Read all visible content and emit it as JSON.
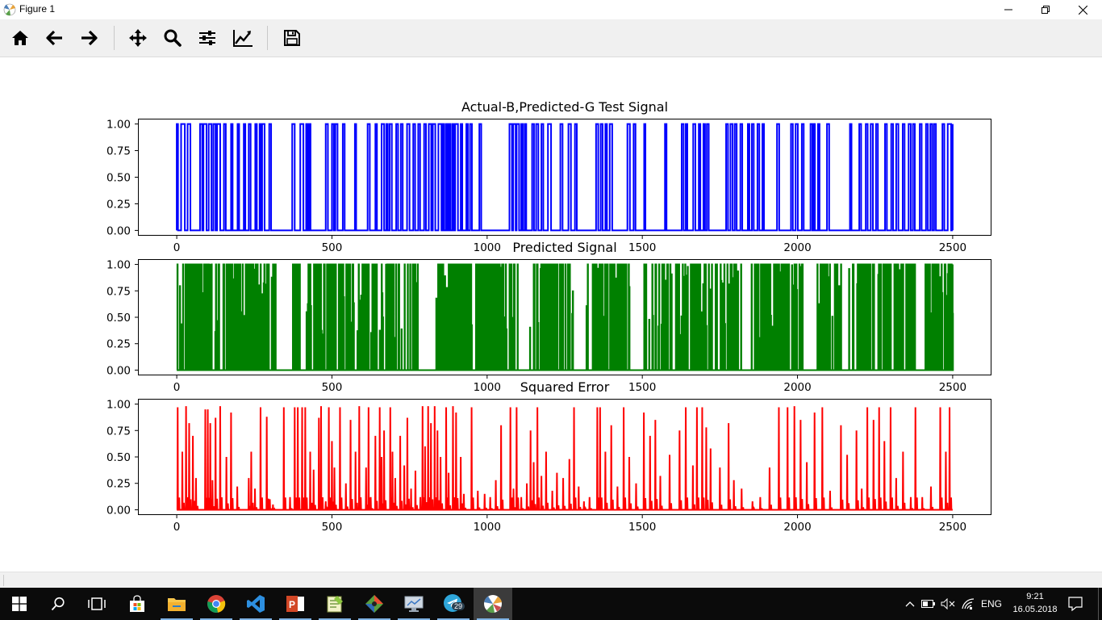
{
  "window": {
    "title": "Figure 1",
    "controls": [
      "minimize",
      "restore",
      "close"
    ]
  },
  "toolbar": {
    "buttons": [
      {
        "name": "home",
        "icon": "home-icon"
      },
      {
        "name": "back",
        "icon": "arrow-left-icon"
      },
      {
        "name": "forward",
        "icon": "arrow-right-icon"
      },
      {
        "name": "pan",
        "icon": "move-icon"
      },
      {
        "name": "zoom",
        "icon": "magnifier-icon"
      },
      {
        "name": "configure-subplots",
        "icon": "sliders-icon"
      },
      {
        "name": "edit-axis",
        "icon": "chart-line-icon"
      },
      {
        "name": "save",
        "icon": "floppy-disk-icon"
      }
    ]
  },
  "chart_data": [
    {
      "type": "line",
      "title": "Actual-B,Predicted-G Test Signal",
      "color": "#0000ff",
      "xlim": [
        -125,
        2625
      ],
      "ylim": [
        -0.05,
        1.05
      ],
      "xticks": [
        0,
        500,
        1000,
        1500,
        2000,
        2500
      ],
      "xtick_labels": [
        "0",
        "500",
        "1000",
        "1500",
        "2000",
        "2500"
      ],
      "yticks": [
        0,
        0.25,
        0.5,
        0.75,
        1
      ],
      "ytick_labels": [
        "0.00",
        "0.25",
        "0.50",
        "0.75",
        "1.00"
      ],
      "x_range": [
        0,
        2500
      ],
      "signal": "binary",
      "pulses": [
        [
          0,
          4
        ],
        [
          14,
          26
        ],
        [
          35,
          44
        ],
        [
          75,
          82
        ],
        [
          86,
          96
        ],
        [
          103,
          112
        ],
        [
          118,
          125
        ],
        [
          130,
          140
        ],
        [
          152,
          158
        ],
        [
          175,
          180
        ],
        [
          196,
          201
        ],
        [
          216,
          221
        ],
        [
          232,
          238
        ],
        [
          253,
          258
        ],
        [
          267,
          272
        ],
        [
          275,
          283
        ],
        [
          298,
          304
        ],
        [
          372,
          380
        ],
        [
          398,
          408
        ],
        [
          417,
          422
        ],
        [
          426,
          431
        ],
        [
          480,
          487
        ],
        [
          500,
          506
        ],
        [
          511,
          518
        ],
        [
          535,
          541
        ],
        [
          574,
          578
        ],
        [
          615,
          622
        ],
        [
          640,
          645
        ],
        [
          660,
          668
        ],
        [
          675,
          680
        ],
        [
          686,
          693
        ],
        [
          707,
          713
        ],
        [
          722,
          728
        ],
        [
          742,
          750
        ],
        [
          762,
          768
        ],
        [
          778,
          784
        ],
        [
          797,
          803
        ],
        [
          812,
          820
        ],
        [
          825,
          833
        ],
        [
          843,
          853
        ],
        [
          858,
          862
        ],
        [
          868,
          873
        ],
        [
          878,
          882
        ],
        [
          888,
          893
        ],
        [
          897,
          906
        ],
        [
          915,
          920
        ],
        [
          933,
          938
        ],
        [
          945,
          951
        ],
        [
          975,
          981
        ],
        [
          1072,
          1080
        ],
        [
          1084,
          1092
        ],
        [
          1095,
          1103
        ],
        [
          1110,
          1115
        ],
        [
          1121,
          1126
        ],
        [
          1145,
          1151
        ],
        [
          1158,
          1165
        ],
        [
          1175,
          1181
        ],
        [
          1196,
          1206
        ],
        [
          1236,
          1243
        ],
        [
          1262,
          1270
        ],
        [
          1283,
          1289
        ],
        [
          1351,
          1358
        ],
        [
          1366,
          1372
        ],
        [
          1381,
          1386
        ],
        [
          1395,
          1403
        ],
        [
          1452,
          1460
        ],
        [
          1472,
          1478
        ],
        [
          1506,
          1510
        ],
        [
          1573,
          1578
        ],
        [
          1627,
          1633
        ],
        [
          1640,
          1645
        ],
        [
          1664,
          1671
        ],
        [
          1682,
          1687
        ],
        [
          1697,
          1702
        ],
        [
          1708,
          1714
        ],
        [
          1770,
          1776
        ],
        [
          1784,
          1791
        ],
        [
          1798,
          1804
        ],
        [
          1816,
          1822
        ],
        [
          1840,
          1845
        ],
        [
          1853,
          1859
        ],
        [
          1871,
          1877
        ],
        [
          1887,
          1892
        ],
        [
          1934,
          1941
        ],
        [
          1979,
          1985
        ],
        [
          1994,
          2001
        ],
        [
          2014,
          2020
        ],
        [
          2042,
          2048
        ],
        [
          2052,
          2056
        ],
        [
          2066,
          2071
        ],
        [
          2095,
          2102
        ],
        [
          2169,
          2174
        ],
        [
          2199,
          2205
        ],
        [
          2220,
          2226
        ],
        [
          2236,
          2243
        ],
        [
          2253,
          2259
        ],
        [
          2282,
          2288
        ],
        [
          2302,
          2308
        ],
        [
          2318,
          2325
        ],
        [
          2339,
          2345
        ],
        [
          2358,
          2365
        ],
        [
          2372,
          2378
        ],
        [
          2394,
          2400
        ],
        [
          2414,
          2420
        ],
        [
          2428,
          2434
        ],
        [
          2440,
          2446
        ],
        [
          2467,
          2473
        ],
        [
          2484,
          2495
        ]
      ]
    },
    {
      "type": "line",
      "title": "Predicted Signal",
      "color": "#008000",
      "xlim": [
        -125,
        2625
      ],
      "ylim": [
        -0.05,
        1.05
      ],
      "xticks": [
        0,
        500,
        1000,
        1500,
        2000,
        2500
      ],
      "xtick_labels": [
        "0",
        "500",
        "1000",
        "1500",
        "2000",
        "2500"
      ],
      "yticks": [
        0,
        0.25,
        0.5,
        0.75,
        1
      ],
      "ytick_labels": [
        "0.00",
        "0.25",
        "0.50",
        "0.75",
        "1.00"
      ],
      "x_range": [
        0,
        2500
      ],
      "signal": "dense-noisy",
      "sparse_regions": [
        [
          320,
          370
        ],
        [
          780,
          830
        ],
        [
          1090,
          1135
        ],
        [
          1270,
          1335
        ],
        [
          1460,
          1520
        ],
        [
          1580,
          1610
        ],
        [
          1820,
          1860
        ],
        [
          2020,
          2060
        ],
        [
          2140,
          2175
        ],
        [
          2380,
          2410
        ]
      ]
    },
    {
      "type": "line",
      "title": "Squared Error",
      "color": "#ff0000",
      "xlim": [
        -125,
        2625
      ],
      "ylim": [
        -0.05,
        1.05
      ],
      "xticks": [
        0,
        500,
        1000,
        1500,
        2000,
        2500
      ],
      "xtick_labels": [
        "0",
        "500",
        "1000",
        "1500",
        "2000",
        "2500"
      ],
      "yticks": [
        0,
        0.25,
        0.5,
        0.75,
        1
      ],
      "ytick_labels": [
        "0.00",
        "0.25",
        "0.50",
        "0.75",
        "1.00"
      ],
      "x_range": [
        0,
        2500
      ],
      "signal": "sparse-spikes",
      "spikes": [
        [
          3,
          0.97
        ],
        [
          18,
          0.55
        ],
        [
          30,
          0.98
        ],
        [
          40,
          0.82
        ],
        [
          52,
          0.7
        ],
        [
          62,
          0.3
        ],
        [
          92,
          0.95
        ],
        [
          100,
          0.95
        ],
        [
          108,
          0.82
        ],
        [
          115,
          0.28
        ],
        [
          125,
          0.87
        ],
        [
          140,
          0.98
        ],
        [
          160,
          0.5
        ],
        [
          175,
          0.92
        ],
        [
          195,
          0.22
        ],
        [
          232,
          0.3
        ],
        [
          240,
          0.55
        ],
        [
          252,
          0.2
        ],
        [
          270,
          0.97
        ],
        [
          290,
          0.88
        ],
        [
          300,
          0.1
        ],
        [
          310,
          0.05
        ],
        [
          345,
          0.97
        ],
        [
          365,
          0.12
        ],
        [
          380,
          0.97
        ],
        [
          390,
          0.97
        ],
        [
          404,
          0.97
        ],
        [
          414,
          0.97
        ],
        [
          430,
          0.55
        ],
        [
          441,
          0.38
        ],
        [
          458,
          0.87
        ],
        [
          465,
          0.98
        ],
        [
          480,
          0.08
        ],
        [
          490,
          0.97
        ],
        [
          500,
          0.65
        ],
        [
          508,
          0.4
        ],
        [
          526,
          0.97
        ],
        [
          545,
          0.25
        ],
        [
          560,
          0.85
        ],
        [
          576,
          0.55
        ],
        [
          588,
          0.98
        ],
        [
          610,
          0.4
        ],
        [
          618,
          0.97
        ],
        [
          625,
          0.12
        ],
        [
          640,
          0.7
        ],
        [
          654,
          0.97
        ],
        [
          660,
          0.5
        ],
        [
          668,
          0.75
        ],
        [
          688,
          0.97
        ],
        [
          695,
          0.55
        ],
        [
          704,
          0.3
        ],
        [
          720,
          0.7
        ],
        [
          733,
          0.42
        ],
        [
          743,
          0.87
        ],
        [
          755,
          0.2
        ],
        [
          769,
          0.37
        ],
        [
          785,
          0.12
        ],
        [
          792,
          0.98
        ],
        [
          800,
          0.6
        ],
        [
          810,
          0.98
        ],
        [
          819,
          0.82
        ],
        [
          831,
          0.98
        ],
        [
          840,
          0.75
        ],
        [
          850,
          0.5
        ],
        [
          868,
          0.97
        ],
        [
          876,
          0.35
        ],
        [
          890,
          0.98
        ],
        [
          900,
          0.92
        ],
        [
          915,
          0.5
        ],
        [
          925,
          0.15
        ],
        [
          950,
          0.97
        ],
        [
          970,
          0.18
        ],
        [
          992,
          0.15
        ],
        [
          1010,
          0.12
        ],
        [
          1028,
          0.28
        ],
        [
          1045,
          0.8
        ],
        [
          1075,
          0.97
        ],
        [
          1085,
          0.2
        ],
        [
          1095,
          0.97
        ],
        [
          1110,
          0.12
        ],
        [
          1128,
          0.25
        ],
        [
          1140,
          0.75
        ],
        [
          1150,
          0.45
        ],
        [
          1162,
          0.97
        ],
        [
          1175,
          0.32
        ],
        [
          1190,
          0.55
        ],
        [
          1210,
          0.18
        ],
        [
          1225,
          0.35
        ],
        [
          1245,
          0.3
        ],
        [
          1265,
          0.48
        ],
        [
          1280,
          0.97
        ],
        [
          1295,
          0.22
        ],
        [
          1312,
          0.08
        ],
        [
          1330,
          0.12
        ],
        [
          1355,
          0.97
        ],
        [
          1364,
          0.97
        ],
        [
          1381,
          0.55
        ],
        [
          1400,
          0.8
        ],
        [
          1420,
          0.22
        ],
        [
          1440,
          0.97
        ],
        [
          1458,
          0.5
        ],
        [
          1480,
          0.25
        ],
        [
          1505,
          0.92
        ],
        [
          1525,
          0.7
        ],
        [
          1542,
          0.85
        ],
        [
          1558,
          0.32
        ],
        [
          1588,
          0.52
        ],
        [
          1620,
          0.75
        ],
        [
          1640,
          0.97
        ],
        [
          1663,
          0.42
        ],
        [
          1676,
          0.97
        ],
        [
          1693,
          0.97
        ],
        [
          1706,
          0.78
        ],
        [
          1720,
          0.58
        ],
        [
          1750,
          0.4
        ],
        [
          1778,
          0.82
        ],
        [
          1795,
          0.28
        ],
        [
          1820,
          0.2
        ],
        [
          1855,
          0.08
        ],
        [
          1880,
          0.12
        ],
        [
          1910,
          0.4
        ],
        [
          1940,
          0.97
        ],
        [
          1968,
          0.97
        ],
        [
          1990,
          0.98
        ],
        [
          2010,
          0.85
        ],
        [
          2030,
          0.45
        ],
        [
          2055,
          0.92
        ],
        [
          2080,
          0.97
        ],
        [
          2105,
          0.18
        ],
        [
          2140,
          0.8
        ],
        [
          2160,
          0.52
        ],
        [
          2190,
          0.75
        ],
        [
          2207,
          0.2
        ],
        [
          2225,
          0.97
        ],
        [
          2245,
          0.85
        ],
        [
          2263,
          0.97
        ],
        [
          2280,
          0.65
        ],
        [
          2300,
          0.97
        ],
        [
          2318,
          0.3
        ],
        [
          2340,
          0.55
        ],
        [
          2365,
          0.12
        ],
        [
          2380,
          0.97
        ],
        [
          2402,
          0.12
        ],
        [
          2430,
          0.22
        ],
        [
          2460,
          0.97
        ],
        [
          2478,
          0.55
        ],
        [
          2490,
          0.97
        ]
      ]
    }
  ],
  "taskbar": {
    "items": [
      {
        "name": "start",
        "icon": "windows-logo-icon"
      },
      {
        "name": "search",
        "icon": "search-icon"
      },
      {
        "name": "task-view",
        "icon": "task-view-icon"
      },
      {
        "name": "store",
        "icon": "store-bag-icon"
      },
      {
        "name": "file-explorer",
        "icon": "folder-icon"
      },
      {
        "name": "chrome",
        "icon": "chrome-icon"
      },
      {
        "name": "vscode",
        "icon": "vscode-icon"
      },
      {
        "name": "powerpoint",
        "icon": "powerpoint-icon"
      },
      {
        "name": "notepad-plus",
        "icon": "notepad-icon"
      },
      {
        "name": "git",
        "icon": "git-icon"
      },
      {
        "name": "remote-desktop",
        "icon": "monitor-icon"
      },
      {
        "name": "telegram",
        "icon": "telegram-icon",
        "badge": "29"
      },
      {
        "name": "matplotlib-figure",
        "icon": "matplotlib-icon"
      }
    ],
    "tray": {
      "language": "ENG",
      "time": "9:21",
      "date": "16.05.2018"
    }
  }
}
